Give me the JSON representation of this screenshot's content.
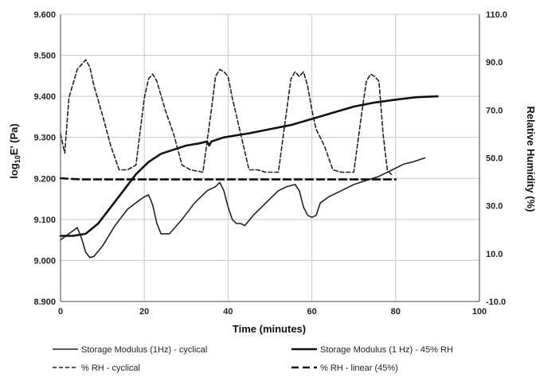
{
  "chart_data": {
    "type": "line",
    "title": "",
    "xlabel": "Time (minutes)",
    "ylabel_left_main": "log",
    "ylabel_left_sub": "10",
    "ylabel_left_rest": "E' (Pa)",
    "ylabel_right": "Relative Humidity (%)",
    "xlim": [
      0,
      100
    ],
    "ylim_left": [
      8.9,
      9.6
    ],
    "ylim_right": [
      -10,
      110
    ],
    "x_ticks": [
      0,
      20,
      40,
      60,
      80,
      100
    ],
    "x_tick_labels": [
      "0",
      "20",
      "40",
      "60",
      "80",
      "100"
    ],
    "y_left_ticks": [
      8.9,
      9.0,
      9.1,
      9.2,
      9.3,
      9.4,
      9.5,
      9.6
    ],
    "y_left_tick_labels": [
      "8.900",
      "9.000",
      "9.100",
      "9.200",
      "9.300",
      "9.400",
      "9.500",
      "9.600"
    ],
    "y_right_ticks": [
      -10,
      10,
      30,
      50,
      70,
      90,
      110
    ],
    "y_right_tick_labels": [
      "-10.0",
      "10.0",
      "30.0",
      "50.0",
      "70.0",
      "90.0",
      "110.0"
    ],
    "grid": true,
    "legend_position": "bottom",
    "series": [
      {
        "name": "Storage Modulus (1Hz) - cyclical",
        "axis": "left",
        "style": "solid-thin",
        "color": "#222222",
        "x": [
          0,
          2,
          4,
          5,
          6,
          7,
          8,
          10,
          13,
          16,
          19,
          20,
          21,
          22,
          23,
          24,
          26,
          29,
          32,
          35,
          37,
          38,
          39,
          40,
          41,
          42,
          43,
          44,
          46,
          49,
          52,
          54,
          56,
          57,
          58,
          59,
          60,
          61,
          62,
          64,
          67,
          70,
          73,
          76,
          79,
          82,
          84,
          87
        ],
        "y": [
          9.05,
          9.065,
          9.08,
          9.055,
          9.02,
          9.007,
          9.01,
          9.035,
          9.085,
          9.125,
          9.148,
          9.155,
          9.16,
          9.135,
          9.09,
          9.065,
          9.065,
          9.1,
          9.14,
          9.17,
          9.18,
          9.19,
          9.17,
          9.13,
          9.1,
          9.09,
          9.09,
          9.085,
          9.11,
          9.14,
          9.17,
          9.18,
          9.185,
          9.17,
          9.13,
          9.11,
          9.105,
          9.11,
          9.14,
          9.155,
          9.17,
          9.185,
          9.195,
          9.205,
          9.22,
          9.235,
          9.24,
          9.25
        ]
      },
      {
        "name": "Storage Modulus (1 Hz) - 45% RH",
        "axis": "left",
        "style": "solid-thick",
        "color": "#111111",
        "x": [
          0,
          3,
          6,
          9,
          12,
          15,
          18,
          21,
          24,
          27,
          30,
          33,
          35,
          35.5,
          36,
          39,
          42,
          45,
          50,
          55,
          60,
          65,
          70,
          75,
          80,
          85,
          90
        ],
        "y": [
          9.06,
          9.06,
          9.065,
          9.09,
          9.13,
          9.17,
          9.21,
          9.24,
          9.26,
          9.27,
          9.28,
          9.285,
          9.29,
          9.28,
          9.29,
          9.3,
          9.305,
          9.31,
          9.32,
          9.33,
          9.345,
          9.36,
          9.375,
          9.385,
          9.392,
          9.398,
          9.4
        ]
      },
      {
        "name": "% RH - cyclical",
        "axis": "right",
        "style": "dashed-thin",
        "color": "#222222",
        "x": [
          0,
          1,
          2,
          4,
          6,
          7,
          8,
          10,
          12,
          14,
          16,
          18,
          20,
          21,
          22,
          23,
          25,
          27,
          29,
          31,
          34,
          36,
          37,
          38,
          39,
          40,
          41,
          43,
          45,
          47,
          49,
          52,
          54,
          55,
          56,
          57,
          58,
          59,
          60,
          61,
          63,
          65,
          67,
          70,
          72,
          73,
          74,
          75,
          76,
          77,
          78,
          79
        ],
        "y": [
          60,
          52,
          75,
          87,
          91,
          88,
          80,
          68,
          55,
          45,
          45,
          47,
          75,
          83,
          85,
          82,
          70,
          60,
          47,
          45,
          44,
          70,
          84,
          87,
          86,
          84,
          75,
          60,
          45,
          45,
          44,
          44,
          70,
          83,
          86,
          84,
          86,
          80,
          70,
          62,
          55,
          45,
          44,
          44,
          70,
          82,
          85,
          84,
          82,
          60,
          45,
          43
        ]
      },
      {
        "name": "% RH - linear (45%)",
        "axis": "right",
        "style": "dashed-thick",
        "color": "#111111",
        "x": [
          0,
          5,
          10,
          20,
          30,
          40,
          50,
          60,
          70,
          80
        ],
        "y": [
          41.5,
          41,
          41,
          41,
          41,
          41,
          41,
          41,
          41,
          41
        ]
      }
    ]
  }
}
